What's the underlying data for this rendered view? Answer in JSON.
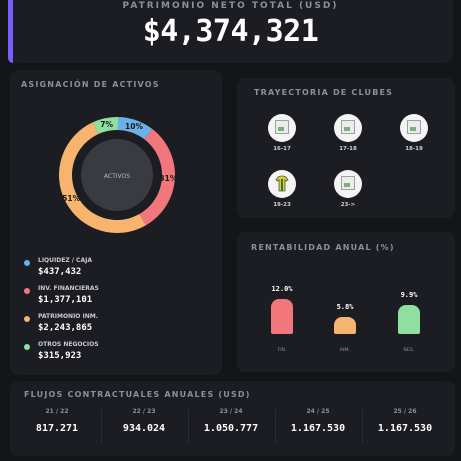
{
  "header": {
    "label": "PATRIMONIO NETO TOTAL (USD)",
    "value": "$4,374,321",
    "accent_color": "#7b5cff"
  },
  "assets": {
    "title": "ASIGNACIÓN DE ACTIVOS",
    "center_label": "ACTIVOS",
    "segments": [
      {
        "name": "LIQUIDEZ / CAJA",
        "value": "$437,432",
        "percent": 10,
        "percent_label": "10%",
        "color": "#6bb1e8"
      },
      {
        "name": "INV. FINANCIERAS",
        "value": "$1,377,101",
        "percent": 31,
        "percent_label": "31%",
        "color": "#f2777c"
      },
      {
        "name": "PATRIMONIO INM.",
        "value": "$2,243,865",
        "percent": 51,
        "percent_label": "51%",
        "color": "#f7b46e"
      },
      {
        "name": "OTROS NEGOCIOS",
        "value": "$315,923",
        "percent": 7,
        "percent_label": "7%",
        "color": "#8fe0a0"
      }
    ]
  },
  "clubs": {
    "title": "TRAYECTORIA DE CLUBES",
    "items": [
      {
        "season": "16-17",
        "logo": "club-logo-placeholder-icon"
      },
      {
        "season": "17-18",
        "logo": "club-logo-placeholder-icon"
      },
      {
        "season": "18-19",
        "logo": "club-logo-placeholder-icon"
      },
      {
        "season": "19-23",
        "logo": "club-jersey-icon"
      },
      {
        "season": "23->",
        "logo": "club-logo-placeholder-icon"
      }
    ]
  },
  "returns": {
    "title": "RENTABILIDAD ANUAL (%)",
    "bars": [
      {
        "value": 12.0,
        "value_label": "12.0%",
        "label": "FIN.",
        "color": "#f2777c"
      },
      {
        "value": 5.8,
        "value_label": "5.8%",
        "label": "INM.",
        "color": "#f7b46e"
      },
      {
        "value": 9.9,
        "value_label": "9.9%",
        "label": "NEG.",
        "color": "#8fe0a0"
      }
    ]
  },
  "flows": {
    "title": "FLUJOS CONTRACTUALES ANUALES (USD)",
    "columns": [
      {
        "season": "21 / 22",
        "value": "817.271"
      },
      {
        "season": "22 / 23",
        "value": "934.024"
      },
      {
        "season": "23 / 24",
        "value": "1.050.777"
      },
      {
        "season": "24 / 25",
        "value": "1.167.530"
      },
      {
        "season": "25 / 26",
        "value": "1.167.530"
      }
    ]
  }
}
